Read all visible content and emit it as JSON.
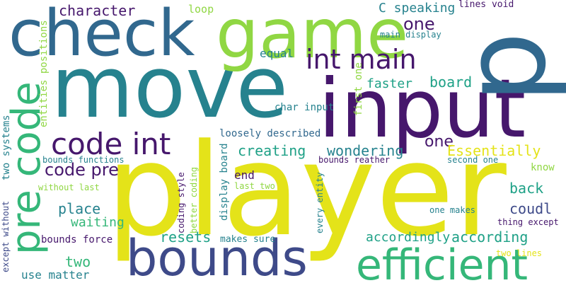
{
  "palette": {
    "dark_purple": "#46176c",
    "indigo": "#3e4a89",
    "steel_blue": "#31688e",
    "teal": "#26828e",
    "sea_green": "#1fa187",
    "green": "#35b779",
    "lime": "#90d743",
    "yellow": "#e4e319"
  },
  "words": {
    "player": "player",
    "move": "move",
    "input": "input",
    "check": "check",
    "game": "game",
    "bounds": "bounds",
    "efficient": "efficient",
    "p": "p",
    "code_int": "code int",
    "int_main": "int main",
    "pre_code": "pre code",
    "code_pre": "code pre",
    "character": "character",
    "c_speaking": "C speaking",
    "lines_void": "lines void",
    "loop": "loop",
    "one_top": "one",
    "main_display": "main display",
    "equal": "equal",
    "board": "board",
    "faster": "faster",
    "first_one": "first one",
    "char_input": "char input",
    "loosely_described": "loosely described",
    "creating": "creating",
    "wondering": "wondering",
    "one_mid": "one",
    "essentially": "Essentially",
    "two_systems": "two systems",
    "entities_positions": "entities positions",
    "bounds_functions": "bounds functions",
    "bounds_reather": "bounds reather",
    "second_one": "second one",
    "know": "know",
    "better_coding": "better coding",
    "display_board": "display board",
    "end": "end",
    "last_two": "last two",
    "without_last": "without last",
    "back": "back",
    "place": "place",
    "coudl": "coudl",
    "waiting": "waiting",
    "coding_style": "coding style",
    "every_entity": "every entity",
    "one_makes": "one makes",
    "except_without": "except without",
    "resets": "resets",
    "according": "according",
    "accordingly": "accordingly",
    "thing_except": "thing except",
    "bounds_force": "bounds force",
    "makes_sure": "makes sure",
    "two": "two",
    "two_lines": "two lines",
    "use_matter": "use matter"
  }
}
